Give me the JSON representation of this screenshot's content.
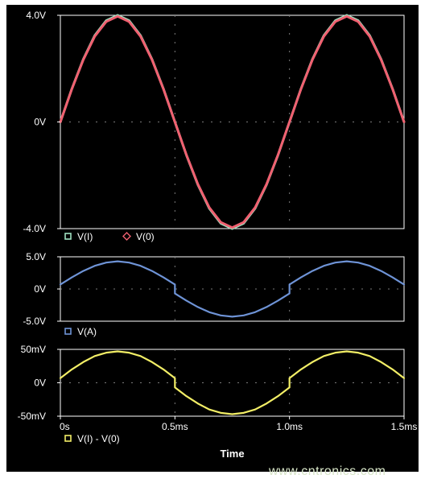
{
  "chart_data": [
    {
      "type": "line",
      "panel": "top",
      "x": [
        0,
        0.05,
        0.1,
        0.15,
        0.2,
        0.25,
        0.3,
        0.35,
        0.4,
        0.45,
        0.5,
        0.55,
        0.6,
        0.65,
        0.7,
        0.75,
        0.8,
        0.85,
        0.9,
        0.95,
        1.0,
        1.05,
        1.1,
        1.15,
        1.2,
        1.25,
        1.3,
        1.35,
        1.4,
        1.45,
        1.5
      ],
      "series": [
        {
          "name": "V(I)",
          "color": "#9fe0c0",
          "values": [
            0,
            1.24,
            2.35,
            3.24,
            3.8,
            4.0,
            3.8,
            3.24,
            2.35,
            1.24,
            0,
            -1.24,
            -2.35,
            -3.24,
            -3.8,
            -4.0,
            -3.8,
            -3.24,
            -2.35,
            -1.24,
            0,
            1.24,
            2.35,
            3.24,
            3.8,
            4.0,
            3.8,
            3.24,
            2.35,
            1.24,
            0
          ]
        },
        {
          "name": "V(0)",
          "color": "#f06070",
          "values": [
            0,
            1.23,
            2.33,
            3.21,
            3.76,
            3.96,
            3.76,
            3.21,
            2.33,
            1.23,
            0,
            -1.23,
            -2.33,
            -3.21,
            -3.76,
            -3.96,
            -3.76,
            -3.21,
            -2.33,
            -1.23,
            0,
            1.23,
            2.33,
            3.21,
            3.76,
            3.96,
            3.76,
            3.21,
            2.33,
            1.23,
            0
          ]
        }
      ],
      "ytick_labels": [
        "4.0V",
        "0V",
        "-4.0V"
      ],
      "ylim": [
        -4.0,
        4.0
      ]
    },
    {
      "type": "line",
      "panel": "middle",
      "x": [
        0,
        0.05,
        0.1,
        0.15,
        0.2,
        0.25,
        0.3,
        0.35,
        0.4,
        0.45,
        0.5,
        0.5,
        0.55,
        0.6,
        0.65,
        0.7,
        0.75,
        0.8,
        0.85,
        0.9,
        0.95,
        1.0,
        1.0,
        1.05,
        1.1,
        1.15,
        1.2,
        1.25,
        1.3,
        1.35,
        1.4,
        1.45,
        1.5
      ],
      "series": [
        {
          "name": "V(A)",
          "color": "#6e93d6",
          "values": [
            0.7,
            1.8,
            2.8,
            3.6,
            4.1,
            4.3,
            4.1,
            3.6,
            2.8,
            1.8,
            0.7,
            -0.7,
            -1.8,
            -2.8,
            -3.6,
            -4.1,
            -4.3,
            -4.1,
            -3.6,
            -2.8,
            -1.8,
            -0.7,
            0.7,
            1.8,
            2.8,
            3.6,
            4.1,
            4.3,
            4.1,
            3.6,
            2.8,
            1.8,
            0.7
          ]
        }
      ],
      "ytick_labels": [
        "5.0V",
        "0V",
        "-5.0V"
      ],
      "ylim": [
        -5.0,
        5.0
      ]
    },
    {
      "type": "line",
      "panel": "bottom",
      "x": [
        0,
        0.05,
        0.1,
        0.15,
        0.2,
        0.25,
        0.3,
        0.35,
        0.4,
        0.45,
        0.5,
        0.5,
        0.55,
        0.6,
        0.65,
        0.7,
        0.75,
        0.8,
        0.85,
        0.9,
        0.95,
        1.0,
        1.0,
        1.05,
        1.1,
        1.15,
        1.2,
        1.25,
        1.3,
        1.35,
        1.4,
        1.45,
        1.5
      ],
      "series": [
        {
          "name": "V(I) -  V(0)",
          "color": "#f2ee66",
          "values": [
            7,
            20,
            31,
            40,
            45,
            47,
            45,
            40,
            31,
            20,
            7,
            -7,
            -20,
            -31,
            -40,
            -45,
            -47,
            -45,
            -40,
            -31,
            -20,
            -7,
            7,
            20,
            31,
            40,
            45,
            47,
            45,
            40,
            31,
            20,
            7
          ]
        }
      ],
      "ytick_labels": [
        "50mV",
        "0V",
        "-50mV"
      ],
      "ylim": [
        -50,
        50
      ]
    }
  ],
  "x_axis": {
    "tick_labels": [
      "0s",
      "0.5ms",
      "1.0ms",
      "1.5ms"
    ],
    "title": "Time",
    "xlim": [
      0,
      1.5
    ]
  },
  "legends": {
    "top": [
      {
        "label": "V(I)",
        "marker": "square",
        "color": "#9fe0c0"
      },
      {
        "label": "V(0)",
        "marker": "diamond",
        "color": "#f06070"
      }
    ],
    "middle": [
      {
        "label": "V(A)",
        "marker": "square",
        "color": "#6e93d6"
      }
    ],
    "bottom": [
      {
        "label": "V(I) -  V(0)",
        "marker": "square",
        "color": "#f2ee66"
      }
    ]
  },
  "watermark": "www.cntronics.com",
  "colors": {
    "background": "#000000",
    "grid": "#7a7a7a",
    "frame": "#ffffff"
  }
}
